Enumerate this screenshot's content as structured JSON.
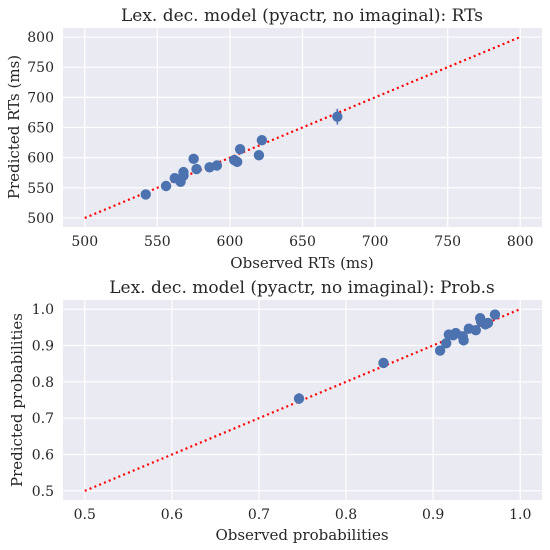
{
  "chart_data": [
    {
      "type": "scatter",
      "title": "Lex. dec. model (pyactr, no imaginal): RTs",
      "xlabel": "Observed RTs (ms)",
      "ylabel": "Predicted RTs (ms)",
      "xlim": [
        485,
        815
      ],
      "ylim": [
        485,
        815
      ],
      "xticks": [
        500,
        550,
        600,
        650,
        700,
        750,
        800
      ],
      "yticks": [
        500,
        550,
        600,
        650,
        700,
        750,
        800
      ],
      "xtick_labels": [
        "500",
        "550",
        "600",
        "650",
        "700",
        "750",
        "800"
      ],
      "ytick_labels": [
        "500",
        "550",
        "600",
        "650",
        "700",
        "750",
        "800"
      ],
      "grid": true,
      "reference_line": {
        "x": [
          500,
          800
        ],
        "y": [
          500,
          800
        ],
        "color": "#ff0000",
        "style": "dotted"
      },
      "marker_color": "#4c72b0",
      "points": [
        {
          "x": 542,
          "y": 539,
          "err": 2
        },
        {
          "x": 556,
          "y": 553,
          "err": 2
        },
        {
          "x": 562,
          "y": 566,
          "err": 2
        },
        {
          "x": 566,
          "y": 560,
          "err": 2
        },
        {
          "x": 568,
          "y": 570,
          "err": 2
        },
        {
          "x": 568,
          "y": 576,
          "err": 2
        },
        {
          "x": 575,
          "y": 598,
          "err": 2
        },
        {
          "x": 577,
          "y": 581,
          "err": 2
        },
        {
          "x": 586,
          "y": 584,
          "err": 2
        },
        {
          "x": 591,
          "y": 587,
          "err": 2
        },
        {
          "x": 603,
          "y": 596,
          "err": 2
        },
        {
          "x": 605,
          "y": 593,
          "err": 2
        },
        {
          "x": 607,
          "y": 614,
          "err": 2
        },
        {
          "x": 620,
          "y": 604,
          "err": 2
        },
        {
          "x": 622,
          "y": 629,
          "err": 3
        },
        {
          "x": 674,
          "y": 668,
          "err": 13
        }
      ]
    },
    {
      "type": "scatter",
      "title": "Lex. dec. model (pyactr, no imaginal): Prob.s",
      "xlabel": "Observed probabilities",
      "ylabel": "Predicted probabilities",
      "xlim": [
        0.475,
        1.025
      ],
      "ylim": [
        0.475,
        1.025
      ],
      "xticks": [
        0.5,
        0.6,
        0.7,
        0.8,
        0.9,
        1.0
      ],
      "yticks": [
        0.5,
        0.6,
        0.7,
        0.8,
        0.9,
        1.0
      ],
      "xtick_labels": [
        "0.5",
        "0.6",
        "0.7",
        "0.8",
        "0.9",
        "1.0"
      ],
      "ytick_labels": [
        "0.5",
        "0.6",
        "0.7",
        "0.8",
        "0.9",
        "1.0"
      ],
      "grid": true,
      "reference_line": {
        "x": [
          0.5,
          1.0
        ],
        "y": [
          0.5,
          1.0
        ],
        "color": "#ff0000",
        "style": "dotted"
      },
      "marker_color": "#4c72b0",
      "points": [
        {
          "x": 0.746,
          "y": 0.754,
          "err": 0.015
        },
        {
          "x": 0.843,
          "y": 0.852,
          "err": 0.004
        },
        {
          "x": 0.908,
          "y": 0.886,
          "err": 0.004
        },
        {
          "x": 0.915,
          "y": 0.906,
          "err": 0.004
        },
        {
          "x": 0.918,
          "y": 0.93,
          "err": 0.004
        },
        {
          "x": 0.923,
          "y": 0.928,
          "err": 0.004
        },
        {
          "x": 0.926,
          "y": 0.934,
          "err": 0.004
        },
        {
          "x": 0.934,
          "y": 0.925,
          "err": 0.004
        },
        {
          "x": 0.935,
          "y": 0.914,
          "err": 0.004
        },
        {
          "x": 0.941,
          "y": 0.946,
          "err": 0.004
        },
        {
          "x": 0.949,
          "y": 0.942,
          "err": 0.004
        },
        {
          "x": 0.954,
          "y": 0.975,
          "err": 0.004
        },
        {
          "x": 0.955,
          "y": 0.966,
          "err": 0.004
        },
        {
          "x": 0.96,
          "y": 0.958,
          "err": 0.004
        },
        {
          "x": 0.963,
          "y": 0.962,
          "err": 0.004
        },
        {
          "x": 0.971,
          "y": 0.985,
          "err": 0.004
        }
      ]
    }
  ]
}
